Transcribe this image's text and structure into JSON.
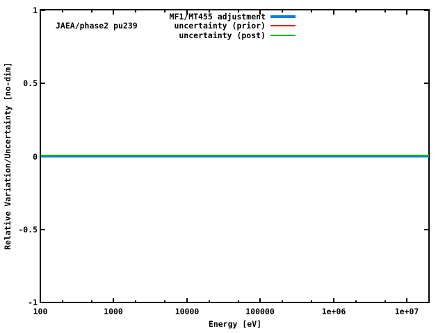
{
  "annotation": "JAEA/phase2 pu239",
  "chart_data": {
    "type": "line",
    "title": "",
    "xlabel": "Energy [eV]",
    "ylabel": "Relative Variation/Uncertainty [no-dim]",
    "x_scale": "log",
    "y_scale": "linear",
    "xlim": [
      100,
      20000000
    ],
    "ylim": [
      -1,
      1
    ],
    "grid": false,
    "legend_position": "top-center-inside",
    "x_major_ticks": [
      {
        "value": 100,
        "label": "100"
      },
      {
        "value": 1000,
        "label": "1000"
      },
      {
        "value": 10000,
        "label": "10000"
      },
      {
        "value": 100000,
        "label": "100000"
      },
      {
        "value": 1000000,
        "label": "1e+06"
      },
      {
        "value": 10000000,
        "label": "1e+07"
      }
    ],
    "x_minor_ticks": [
      200,
      500,
      2000,
      5000,
      20000,
      50000,
      200000,
      500000,
      2000000,
      5000000
    ],
    "y_major_ticks": [
      {
        "value": 1,
        "label": "1"
      },
      {
        "value": 0.5,
        "label": "0.5"
      },
      {
        "value": 0,
        "label": "0"
      },
      {
        "value": -0.5,
        "label": "-0.5"
      },
      {
        "value": -1,
        "label": "-1"
      }
    ],
    "series": [
      {
        "name": "MF1/MT455 adjustment",
        "color": "#0b7ce0",
        "line_width": 4,
        "x": [
          100,
          20000000
        ],
        "y": [
          0,
          0
        ]
      },
      {
        "name": "uncertainty (prior)",
        "color": "#ee0000",
        "line_width": 2,
        "x": [
          100,
          20000000
        ],
        "y": [
          0,
          0
        ]
      },
      {
        "name": "uncertainty (post)",
        "color": "#00b400",
        "line_width": 2,
        "x": [
          100,
          20000000
        ],
        "y": [
          0,
          0
        ]
      }
    ],
    "axis_color": "#000000",
    "background_color": "#ffffff"
  }
}
